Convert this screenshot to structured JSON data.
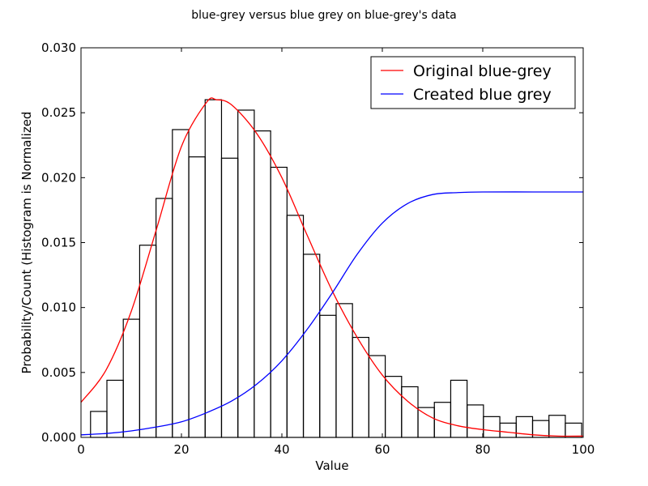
{
  "chart_data": {
    "type": "bar",
    "title": "blue-grey versus blue grey on blue-grey's data",
    "xlabel": "Value",
    "ylabel": "Probability/Count (Histogram is Normalized",
    "xlim": [
      0,
      100
    ],
    "ylim": [
      0,
      0.03
    ],
    "x_ticks": [
      "0",
      "20",
      "40",
      "60",
      "80",
      "100"
    ],
    "y_ticks": [
      "0.000",
      "0.005",
      "0.010",
      "0.015",
      "0.020",
      "0.025",
      "0.030"
    ],
    "histogram": {
      "bin_edges": [
        1.9,
        5.16,
        8.42,
        11.68,
        14.94,
        18.2,
        21.46,
        24.72,
        27.98,
        31.24,
        34.5,
        37.76,
        41.02,
        44.28,
        47.54,
        50.8,
        54.06,
        57.32,
        60.58,
        63.84,
        67.1,
        70.36,
        73.62,
        76.88,
        80.14,
        83.4,
        86.66,
        89.92,
        93.18,
        96.44,
        99.7
      ],
      "values": [
        0.002,
        0.0044,
        0.0091,
        0.0148,
        0.0184,
        0.0237,
        0.0216,
        0.026,
        0.0215,
        0.0252,
        0.0236,
        0.0208,
        0.0171,
        0.0141,
        0.0094,
        0.0103,
        0.0077,
        0.0063,
        0.0047,
        0.0039,
        0.0023,
        0.0027,
        0.0044,
        0.0025,
        0.0016,
        0.0011,
        0.0016,
        0.0013,
        0.0017,
        0.0011
      ]
    },
    "series": [
      {
        "name": "Original blue-grey",
        "color": "#ff0000",
        "x": [
          0,
          5,
          10,
          15,
          20,
          25,
          27,
          30,
          35,
          40,
          45,
          50,
          55,
          60,
          65,
          70,
          75,
          80,
          85,
          90,
          95,
          100
        ],
        "y": [
          0.0027,
          0.0052,
          0.0097,
          0.016,
          0.0224,
          0.0258,
          0.026,
          0.0256,
          0.0234,
          0.02,
          0.0156,
          0.0113,
          0.0077,
          0.0048,
          0.0028,
          0.0015,
          0.0009,
          0.0006,
          0.0004,
          0.0002,
          0.0001,
          0.0001
        ]
      },
      {
        "name": "Created blue grey",
        "color": "#0000ff",
        "x": [
          0,
          5,
          10,
          15,
          20,
          25,
          30,
          35,
          40,
          45,
          50,
          55,
          60,
          65,
          70,
          75,
          80,
          90,
          100
        ],
        "y": [
          0.0002,
          0.0003,
          0.0005,
          0.0008,
          0.0012,
          0.0019,
          0.0028,
          0.0041,
          0.0059,
          0.0083,
          0.0111,
          0.0141,
          0.0165,
          0.018,
          0.0187,
          0.01885,
          0.0189,
          0.0189,
          0.0189
        ]
      }
    ],
    "legend": {
      "position": "top-right"
    },
    "grid": false
  }
}
